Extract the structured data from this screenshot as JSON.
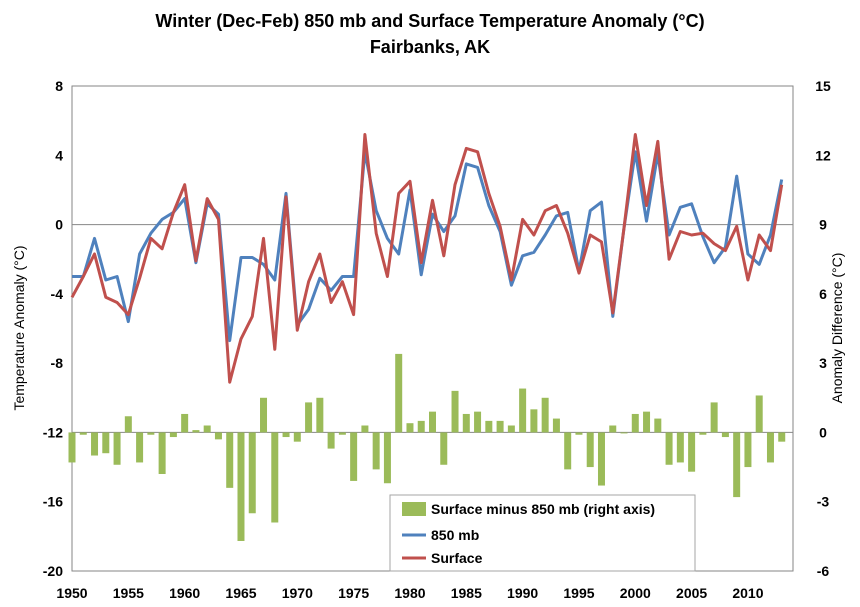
{
  "chart_data": {
    "type": "line+bar",
    "title": "Winter (Dec-Feb) 850 mb and Surface Temperature Anomaly (°C)",
    "subtitle": "Fairbanks, AK",
    "ylabel": "Temperature Anomaly (°C)",
    "y2label": "Anomaly Difference (°C)",
    "xlim": [
      1950,
      2014
    ],
    "ylim": [
      -20,
      8
    ],
    "y2lim": [
      -6,
      15
    ],
    "xticks": [
      "1950",
      "1955",
      "1960",
      "1965",
      "1970",
      "1975",
      "1980",
      "1985",
      "1990",
      "1995",
      "2000",
      "2005",
      "2010"
    ],
    "yticks": [
      "8",
      "4",
      "0",
      "-4",
      "-8",
      "-12",
      "-16",
      "-20"
    ],
    "y2ticks": [
      "15",
      "12",
      "9",
      "6",
      "3",
      "0",
      "-3",
      "-6"
    ],
    "years": [
      1950,
      1951,
      1952,
      1953,
      1954,
      1955,
      1956,
      1957,
      1958,
      1959,
      1960,
      1961,
      1962,
      1963,
      1964,
      1965,
      1966,
      1967,
      1968,
      1969,
      1970,
      1971,
      1972,
      1973,
      1974,
      1975,
      1976,
      1977,
      1978,
      1979,
      1980,
      1981,
      1982,
      1983,
      1984,
      1985,
      1986,
      1987,
      1988,
      1989,
      1990,
      1991,
      1992,
      1993,
      1994,
      1995,
      1996,
      1997,
      1998,
      1999,
      2000,
      2001,
      2002,
      2003,
      2004,
      2005,
      2006,
      2007,
      2008,
      2009,
      2010,
      2011,
      2012,
      2013
    ],
    "series": [
      {
        "name": "Surface minus 850 mb (right axis)",
        "type": "bar",
        "axis": "right",
        "color": "#9bbb59",
        "values": [
          -1.3,
          -0.1,
          -1.0,
          -0.9,
          -1.4,
          0.7,
          -1.3,
          -0.1,
          -1.8,
          -0.2,
          0.8,
          0.1,
          0.3,
          -0.3,
          -2.4,
          -4.7,
          -3.5,
          1.5,
          -3.9,
          -0.2,
          -0.4,
          1.3,
          1.5,
          -0.7,
          -0.1,
          -2.1,
          0.3,
          -1.6,
          -2.2,
          3.4,
          0.4,
          0.5,
          0.9,
          -1.4,
          1.8,
          0.8,
          0.9,
          0.5,
          0.5,
          0.3,
          1.9,
          1.0,
          1.5,
          0.6,
          -1.6,
          -0.1,
          -1.5,
          -2.3,
          0.3,
          0.0,
          0.8,
          0.9,
          0.6,
          -1.4,
          -1.3,
          -1.7,
          -0.1,
          1.3,
          -0.2,
          -2.8,
          -1.5,
          1.6,
          -1.3,
          -0.4
        ]
      },
      {
        "name": "850 mb",
        "type": "line",
        "axis": "left",
        "color": "#4f81bd",
        "values": [
          -3.0,
          -3.0,
          -0.8,
          -3.2,
          -3.0,
          -5.6,
          -1.7,
          -0.5,
          0.3,
          0.7,
          1.5,
          -2.2,
          1.2,
          0.6,
          -6.7,
          -1.9,
          -1.9,
          -2.3,
          -3.2,
          1.8,
          -5.8,
          -4.9,
          -3.1,
          -3.8,
          -3.0,
          -3.0,
          4.2,
          0.8,
          -0.8,
          -1.7,
          2.0,
          -2.9,
          0.6,
          -0.4,
          0.5,
          3.5,
          3.3,
          1.1,
          -0.4,
          -3.5,
          -1.8,
          -1.6,
          -0.6,
          0.5,
          0.7,
          -2.7,
          0.8,
          1.3,
          -5.3,
          -0.2,
          4.2,
          0.2,
          4.1,
          -0.6,
          1.0,
          1.2,
          -0.7,
          -2.2,
          -1.3,
          2.8,
          -1.7,
          -2.3,
          -0.6,
          2.6
        ]
      },
      {
        "name": "Surface",
        "type": "line",
        "axis": "left",
        "color": "#c0504d",
        "values": [
          -4.2,
          -3.0,
          -1.7,
          -4.2,
          -4.5,
          -5.2,
          -3.1,
          -0.8,
          -1.4,
          0.7,
          2.3,
          -2.1,
          1.5,
          0.3,
          -9.1,
          -6.6,
          -5.3,
          -0.8,
          -7.2,
          1.6,
          -6.1,
          -3.3,
          -1.7,
          -4.5,
          -3.3,
          -5.2,
          5.2,
          -0.5,
          -3.0,
          1.8,
          2.5,
          -2.2,
          1.4,
          -1.8,
          2.3,
          4.4,
          4.2,
          1.8,
          -0.1,
          -3.2,
          0.3,
          -0.6,
          0.8,
          1.1,
          -0.5,
          -2.8,
          -0.6,
          -1.0,
          -5.1,
          -0.2,
          5.2,
          1.1,
          4.8,
          -2.0,
          -0.4,
          -0.6,
          -0.5,
          -1.1,
          -1.5,
          -0.1,
          -3.2,
          -0.6,
          -1.5,
          2.3
        ]
      }
    ],
    "legend": [
      "Surface minus 850 mb (right axis)",
      "850 mb",
      "Surface"
    ]
  }
}
